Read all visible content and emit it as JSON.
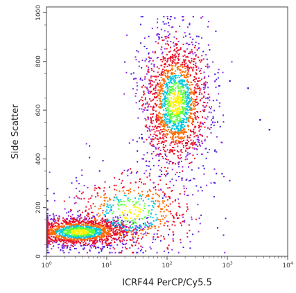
{
  "chart_data": {
    "type": "scatter",
    "title": "",
    "xlabel": "ICRF44 PerCP/Cy5.5",
    "ylabel": "Side Scatter",
    "x_scale": "log",
    "y_scale": "linear",
    "xlim": [
      1,
      10000
    ],
    "ylim": [
      0,
      1024
    ],
    "x_ticks": [
      {
        "base": "10",
        "exp": "0"
      },
      {
        "base": "10",
        "exp": "1"
      },
      {
        "base": "10",
        "exp": "2"
      },
      {
        "base": "10",
        "exp": "3"
      },
      {
        "base": "10",
        "exp": "4"
      }
    ],
    "y_tick_values": [
      0,
      200,
      400,
      600,
      800,
      1000
    ],
    "y_tick_labels": [
      "0",
      "200",
      "400",
      "600",
      "800",
      "1000"
    ],
    "grid": false,
    "legend": "none",
    "density_colors": [
      "#3a1fd6",
      "#8a2be2",
      "#e8102a",
      "#ff6a00",
      "#00c8e0",
      "#5dff3a",
      "#fff200"
    ],
    "populations": [
      {
        "x_log_center": 0.55,
        "x_log_spread": 0.45,
        "y_center": 100,
        "y_spread": 30,
        "share": 0.4
      },
      {
        "x_log_center": 2.15,
        "x_log_spread": 0.28,
        "y_center": 630,
        "y_spread": 140,
        "share": 0.45
      },
      {
        "x_log_center": 1.4,
        "x_log_spread": 0.55,
        "y_center": 180,
        "y_spread": 90,
        "share": 0.15
      }
    ],
    "outliers": [
      {
        "x": 3500,
        "y": 560
      },
      {
        "x": 5000,
        "y": 520
      },
      {
        "x": 1100,
        "y": 720
      },
      {
        "x": 2200,
        "y": 690
      }
    ]
  }
}
